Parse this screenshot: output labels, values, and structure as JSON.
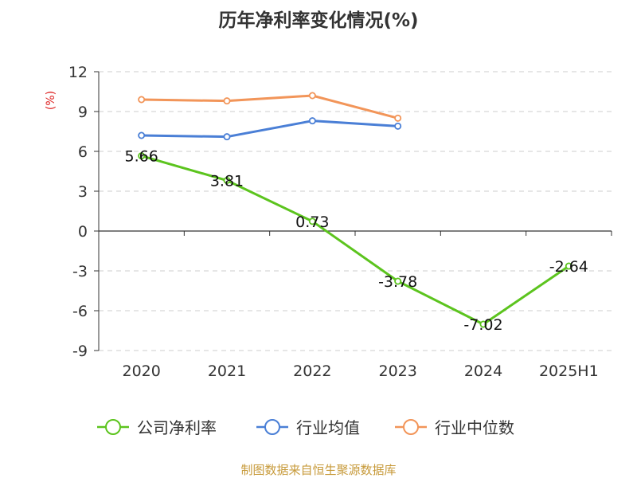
{
  "colors": {
    "title": "#333333",
    "ylabel": "#dd2222",
    "axis": "#333333",
    "grid": "#cccccc",
    "source": "#c79a3a"
  },
  "chart_data": {
    "type": "line",
    "title": "历年净利率变化情况(%)",
    "ylabel": "(%)",
    "xlabel": "",
    "categories": [
      "2020",
      "2021",
      "2022",
      "2023",
      "2024",
      "2025H1"
    ],
    "ylim": [
      -9,
      12
    ],
    "yticks": [
      12,
      9,
      6,
      3,
      0,
      -3,
      -6,
      -9
    ],
    "grid": true,
    "legend_position": "bottom",
    "series": [
      {
        "name": "公司净利率",
        "color": "#5cc41e",
        "values": [
          5.66,
          3.81,
          0.73,
          -3.78,
          -7.02,
          -2.64
        ],
        "data_labels": [
          "5.66",
          "3.81",
          "0.73",
          "-3.78",
          "-7.02",
          "-2.64"
        ]
      },
      {
        "name": "行业均值",
        "color": "#4a7fd6",
        "values": [
          7.2,
          7.1,
          8.3,
          7.9,
          null,
          null
        ]
      },
      {
        "name": "行业中位数",
        "color": "#f29559",
        "values": [
          9.9,
          9.8,
          10.2,
          8.5,
          null,
          null
        ]
      }
    ]
  },
  "footer": {
    "source": "制图数据来自恒生聚源数据库"
  }
}
